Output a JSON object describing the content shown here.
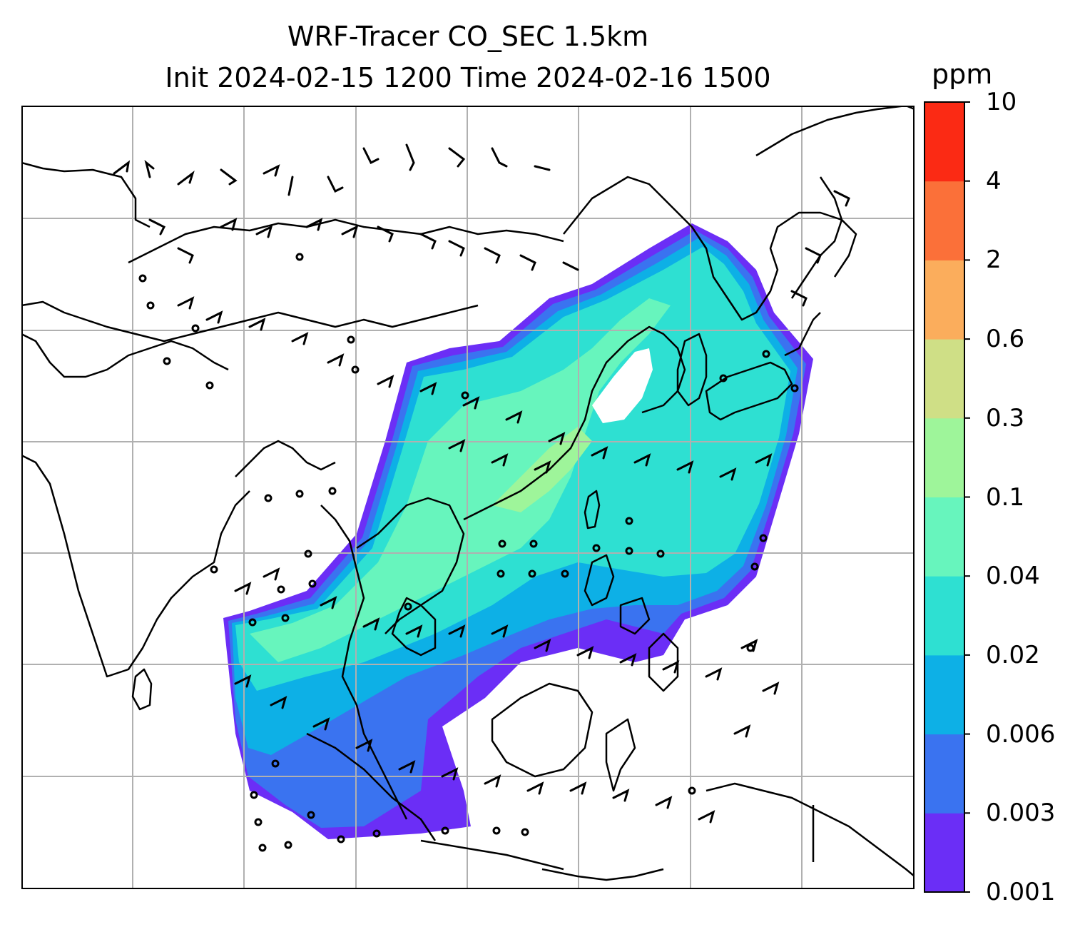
{
  "title": {
    "line1": "WRF-Tracer CO_SEC 1.5km",
    "line2": "Init 2024-02-15 1200 Time 2024-02-16 1500"
  },
  "colorbar": {
    "unit": "ppm",
    "levels": [
      "0.001",
      "0.003",
      "0.006",
      "0.02",
      "0.04",
      "0.1",
      "0.3",
      "0.6",
      "2",
      "4",
      "10"
    ],
    "colors": [
      "#6b2ef6",
      "#3a73f0",
      "#0db0e6",
      "#2ee0d2",
      "#67f5bd",
      "#9ef59a",
      "#cfdf86",
      "#fbad5c",
      "#fb7039",
      "#fb2a14"
    ]
  },
  "map": {
    "field": "CO_SEC",
    "gridlines": true,
    "overlays": [
      "coastlines",
      "wind-barbs",
      "calm-circles"
    ]
  }
}
